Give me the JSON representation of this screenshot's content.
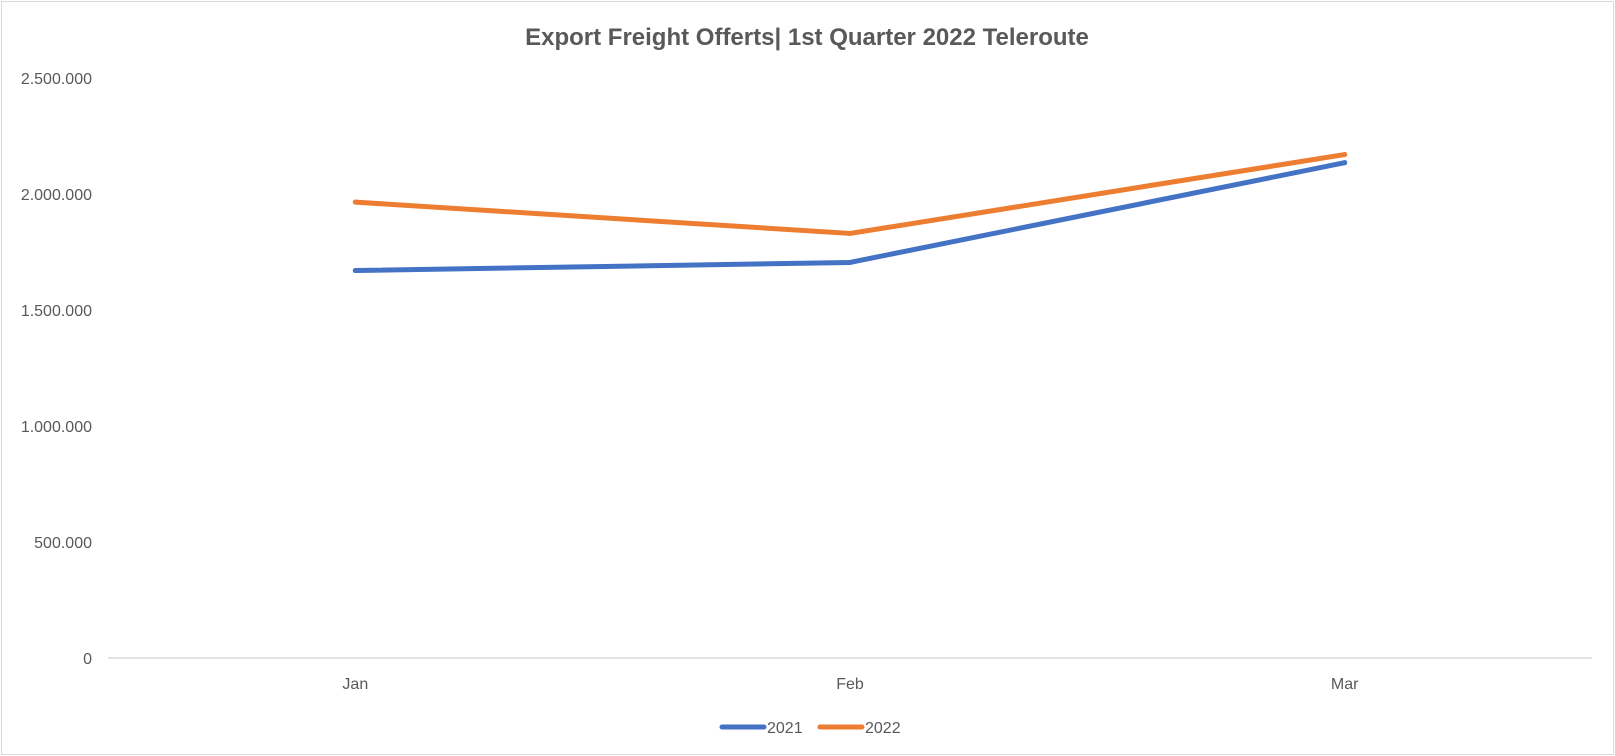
{
  "chart_data": {
    "type": "line",
    "title": "Export Freight Offerts|  1st Quarter 2022 Teleroute",
    "xlabel": "",
    "ylabel": "",
    "categories": [
      "Jan",
      "Feb",
      "Mar"
    ],
    "series": [
      {
        "name": "2021",
        "color": "#4472C4",
        "values": [
          1670000,
          1705000,
          2135000
        ]
      },
      {
        "name": "2022",
        "color": "#ED7D31",
        "values": [
          1965000,
          1830000,
          2170000
        ]
      }
    ],
    "ylim": [
      0,
      2500000
    ],
    "yticks": [
      0,
      500000,
      1000000,
      1500000,
      2000000,
      2500000
    ],
    "ytick_labels": [
      "0",
      "500.000",
      "1.000.000",
      "1.500.000",
      "2.000.000",
      "2.500.000"
    ],
    "grid": false,
    "legend": "bottom-center"
  }
}
